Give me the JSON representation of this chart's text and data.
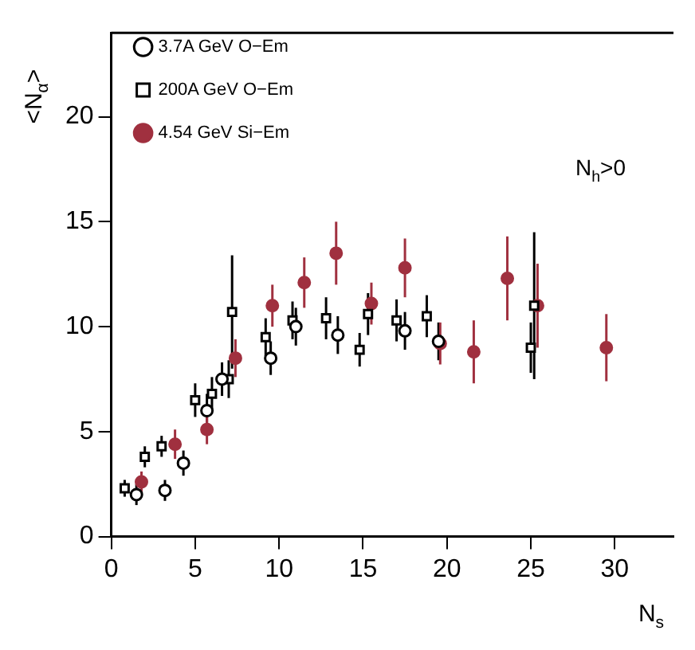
{
  "chart_data": {
    "type": "scatter",
    "xlabel": "N$_{s}$",
    "ylabel": "<N$_{α}$>",
    "annotations": [
      "N$_{h}$>0"
    ],
    "xlim": [
      0,
      33.5
    ],
    "ylim": [
      0,
      24
    ],
    "xticks": [
      0,
      5,
      10,
      15,
      20,
      25,
      30
    ],
    "yticks": [
      0,
      5,
      10,
      15,
      20
    ],
    "grid": false,
    "legend": "top left",
    "series": [
      {
        "name": "3.7A GeV O−Em",
        "color": "#000000",
        "marker": "circle",
        "x": [
          1.5,
          3.2,
          4.3,
          5.7,
          6.6,
          9.5,
          11,
          13.5,
          17.5,
          19.5
        ],
        "values": [
          2.0,
          2.2,
          3.5,
          6.0,
          7.5,
          8.5,
          10.0,
          9.6,
          9.8,
          9.3
        ],
        "errors": [
          0.5,
          0.5,
          0.6,
          0.8,
          0.8,
          0.8,
          0.9,
          0.9,
          0.9,
          0.9
        ]
      },
      {
        "name": "200A GeV O−Em",
        "color": "#000000",
        "marker": "square",
        "x": [
          0.8,
          2,
          3,
          5,
          6,
          7,
          7.2,
          9.2,
          10.8,
          12.8,
          14.8,
          15.3,
          17,
          18.8,
          25,
          25.2
        ],
        "values": [
          2.3,
          3.8,
          4.3,
          6.5,
          6.8,
          7.5,
          10.7,
          9.5,
          10.3,
          10.4,
          8.9,
          10.6,
          10.3,
          10.5,
          9.0,
          11.0
        ],
        "errors": [
          0.4,
          0.5,
          0.5,
          0.8,
          0.8,
          0.9,
          2.7,
          0.9,
          0.9,
          1.0,
          0.8,
          1.0,
          1.0,
          1.0,
          1.2,
          3.5
        ]
      },
      {
        "name": "4.54 GeV Si−Em",
        "color": "#a0303f",
        "marker": "circle",
        "x": [
          1.8,
          3.8,
          5.7,
          7.4,
          9.6,
          11.5,
          13.4,
          15.5,
          17.5,
          19.6,
          21.6,
          23.6,
          25.4,
          29.5
        ],
        "values": [
          2.6,
          4.4,
          5.1,
          8.5,
          11.0,
          12.1,
          13.5,
          11.1,
          12.8,
          9.2,
          8.8,
          12.3,
          11.0,
          9.0
        ],
        "errors": [
          0.5,
          0.7,
          0.7,
          0.9,
          1.0,
          1.2,
          1.5,
          1.0,
          1.4,
          1.0,
          1.5,
          2.0,
          2.0,
          1.6
        ]
      }
    ]
  }
}
